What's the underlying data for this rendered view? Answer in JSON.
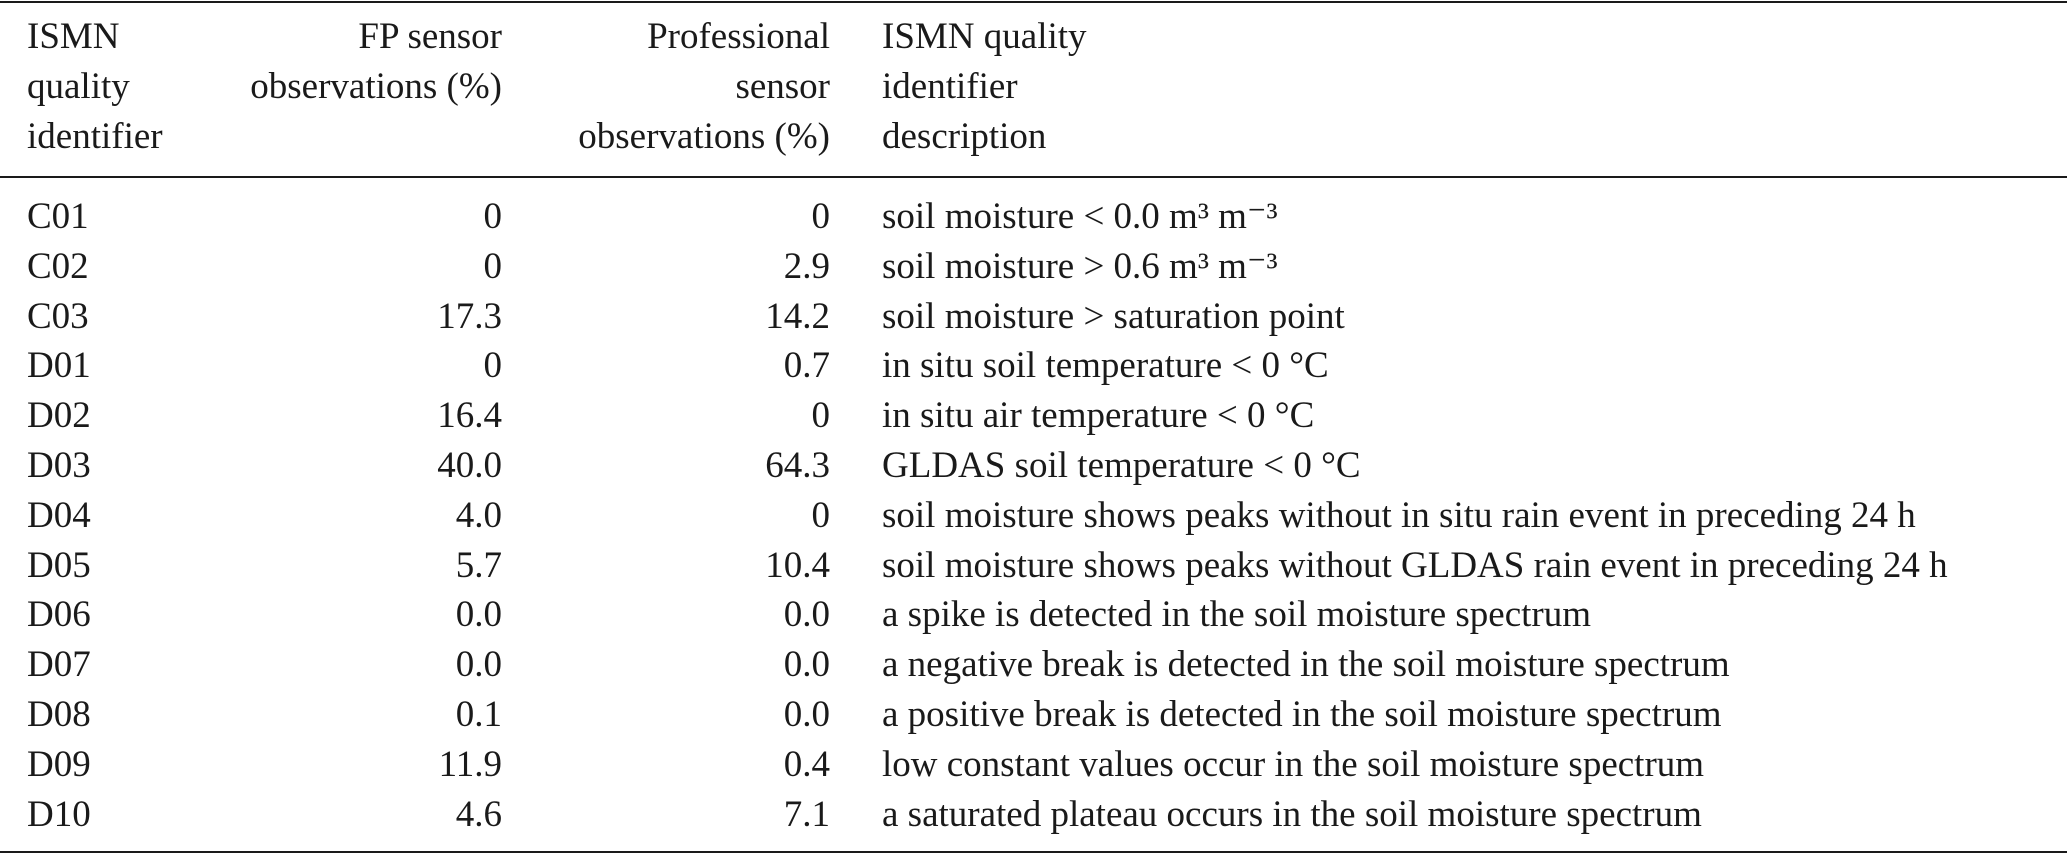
{
  "table": {
    "headers": {
      "id": [
        "ISMN",
        "quality",
        "identifier"
      ],
      "fp": [
        "FP sensor",
        "observations (%)"
      ],
      "pro": [
        "Professional",
        "sensor",
        "observations (%)"
      ],
      "desc": [
        "ISMN quality",
        "identifier",
        "description"
      ]
    },
    "rows": [
      {
        "id": "C01",
        "fp": "0",
        "pro": "0",
        "desc": "soil moisture < 0.0 m³ m⁻³"
      },
      {
        "id": "C02",
        "fp": "0",
        "pro": "2.9",
        "desc": "soil moisture > 0.6 m³ m⁻³"
      },
      {
        "id": "C03",
        "fp": "17.3",
        "pro": "14.2",
        "desc": "soil moisture > saturation point"
      },
      {
        "id": "D01",
        "fp": "0",
        "pro": "0.7",
        "desc": "in situ soil temperature < 0 °C"
      },
      {
        "id": "D02",
        "fp": "16.4",
        "pro": "0",
        "desc": "in situ air temperature < 0 °C"
      },
      {
        "id": "D03",
        "fp": "40.0",
        "pro": "64.3",
        "desc": "GLDAS soil temperature < 0 °C"
      },
      {
        "id": "D04",
        "fp": "4.0",
        "pro": "0",
        "desc": "soil moisture shows peaks without in situ rain event in preceding 24 h"
      },
      {
        "id": "D05",
        "fp": "5.7",
        "pro": "10.4",
        "desc": "soil moisture shows peaks without GLDAS rain event in preceding 24 h"
      },
      {
        "id": "D06",
        "fp": "0.0",
        "pro": "0.0",
        "desc": "a spike is detected in the soil moisture spectrum"
      },
      {
        "id": "D07",
        "fp": "0.0",
        "pro": "0.0",
        "desc": "a negative break is detected in the soil moisture spectrum"
      },
      {
        "id": "D08",
        "fp": "0.1",
        "pro": "0.0",
        "desc": "a positive break is detected in the soil moisture spectrum"
      },
      {
        "id": "D09",
        "fp": "11.9",
        "pro": "0.4",
        "desc": "low constant values occur in the soil moisture spectrum"
      },
      {
        "id": "D10",
        "fp": "4.6",
        "pro": "7.1",
        "desc": "a saturated plateau occurs in the soil moisture spectrum"
      }
    ]
  }
}
